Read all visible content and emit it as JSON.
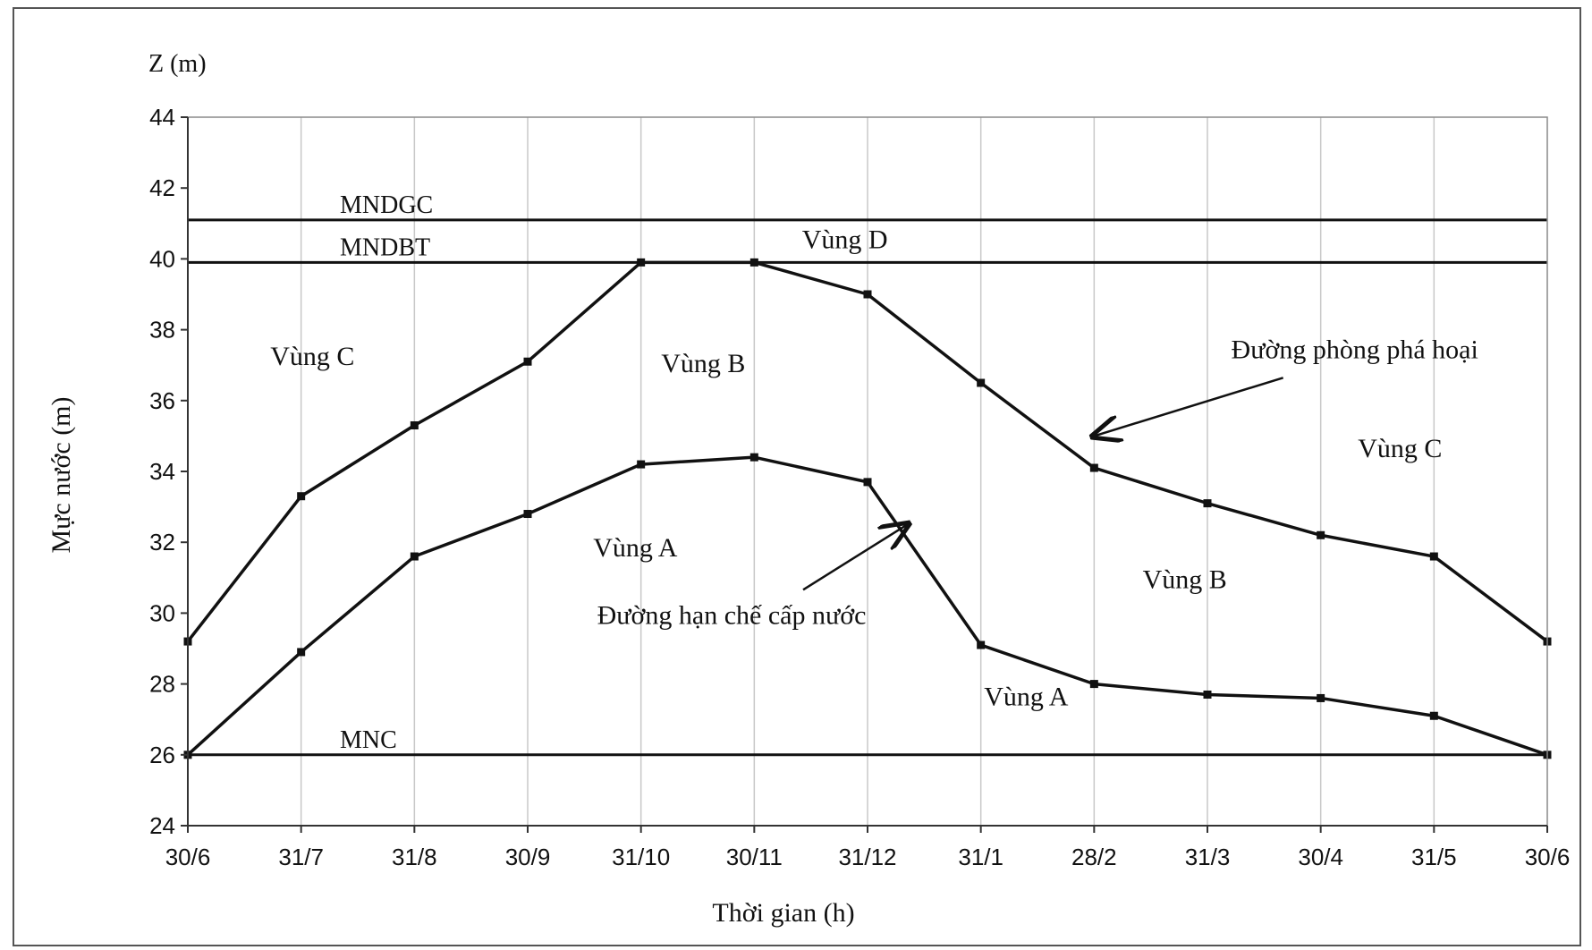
{
  "chart_data": {
    "type": "line",
    "ylabel_top": "Z (m)",
    "ylabel": "Mực nước (m)",
    "xlabel": "Thời gian (h)",
    "ylim": [
      24,
      44
    ],
    "yticks": [
      24,
      26,
      28,
      30,
      32,
      34,
      36,
      38,
      40,
      42,
      44
    ],
    "categories": [
      "30/6",
      "31/7",
      "31/8",
      "30/9",
      "31/10",
      "30/11",
      "31/12",
      "31/1",
      "28/2",
      "31/3",
      "30/4",
      "31/5",
      "30/6"
    ],
    "grid": "vertical",
    "series": [
      {
        "name": "Đường phòng phá hoại",
        "values": [
          29.2,
          33.3,
          35.3,
          37.1,
          39.9,
          39.9,
          39.0,
          36.5,
          34.1,
          33.1,
          32.2,
          31.6,
          29.2
        ]
      },
      {
        "name": "Đường hạn chế cấp nước",
        "values": [
          26.0,
          28.9,
          31.6,
          32.8,
          34.2,
          34.4,
          33.7,
          29.1,
          28.0,
          27.7,
          27.6,
          27.1,
          26.0
        ]
      }
    ],
    "reference_lines": [
      {
        "label": "MNDGC",
        "value": 41.1
      },
      {
        "label": "MNDBT",
        "value": 39.9
      },
      {
        "label": "MNC",
        "value": 26.0
      }
    ],
    "zone_labels": [
      {
        "label": "Vùng D",
        "x": 5.8,
        "y": 40.3
      },
      {
        "label": "Vùng C",
        "x": 1.1,
        "y": 37.0
      },
      {
        "label": "Vùng B",
        "x": 4.55,
        "y": 36.8
      },
      {
        "label": "Vùng C",
        "x": 10.7,
        "y": 34.4
      },
      {
        "label": "Vùng A",
        "x": 3.95,
        "y": 31.6
      },
      {
        "label": "Vùng B",
        "x": 8.8,
        "y": 30.7
      },
      {
        "label": "Vùng A",
        "x": 7.4,
        "y": 27.4
      }
    ],
    "annotations": [
      {
        "text": "Đường phòng phá hoại",
        "x": 10.3,
        "y": 37.2,
        "target_x": 8.0,
        "target_y": 35.0,
        "series": 0
      },
      {
        "text": "Đường hạn chế cấp nước",
        "x": 4.8,
        "y": 29.7,
        "target_x": 6.35,
        "target_y": 32.5,
        "series": 1
      }
    ]
  }
}
